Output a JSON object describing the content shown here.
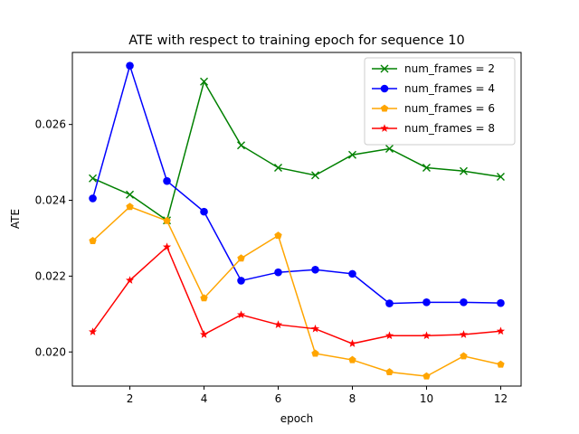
{
  "chart_data": {
    "type": "line",
    "title": "ATE with respect to training epoch for sequence 10",
    "xlabel": "epoch",
    "ylabel": "ATE",
    "xlim": [
      0.45,
      12.55
    ],
    "ylim": [
      0.0191,
      0.0279
    ],
    "xticks": [
      2,
      4,
      6,
      8,
      10,
      12
    ],
    "yticks": [
      0.02,
      0.022,
      0.024,
      0.026
    ],
    "ytick_labels": [
      "0.020",
      "0.022",
      "0.024",
      "0.026"
    ],
    "grid": false,
    "legend_position": "top-right",
    "x": [
      1,
      2,
      3,
      4,
      5,
      6,
      7,
      8,
      9,
      10,
      11,
      12
    ],
    "series": [
      {
        "name": "num_frames = 2",
        "color": "#008000",
        "marker": "x",
        "values": [
          0.02458,
          0.02415,
          0.02347,
          0.02713,
          0.02545,
          0.02486,
          0.02466,
          0.0252,
          0.02536,
          0.02486,
          0.02477,
          0.02462
        ]
      },
      {
        "name": "num_frames = 4",
        "color": "#0000ff",
        "marker": "o",
        "values": [
          0.02405,
          0.02755,
          0.02451,
          0.0237,
          0.02188,
          0.0221,
          0.02217,
          0.02206,
          0.02128,
          0.02131,
          0.02131,
          0.02129
        ]
      },
      {
        "name": "num_frames = 6",
        "color": "#ffa500",
        "marker": "p",
        "values": [
          0.02293,
          0.02383,
          0.02346,
          0.02142,
          0.02247,
          0.02307,
          0.01996,
          0.01979,
          0.01947,
          0.01936,
          0.01989,
          0.01967
        ]
      },
      {
        "name": "num_frames = 8",
        "color": "#ff0000",
        "marker": "*",
        "values": [
          0.02053,
          0.02189,
          0.02277,
          0.02046,
          0.02098,
          0.02072,
          0.02061,
          0.02022,
          0.02043,
          0.02043,
          0.02046,
          0.02055
        ]
      }
    ]
  }
}
